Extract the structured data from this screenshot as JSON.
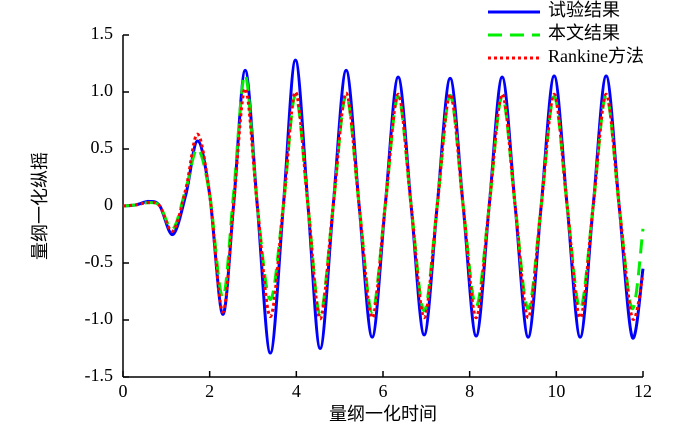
{
  "chart_data": {
    "type": "line",
    "xlabel": "量纲一化时间",
    "ylabel": "量纲一化纵摇",
    "x": [
      0,
      0.3,
      0.6,
      0.85,
      1.15,
      1.45,
      1.72,
      2.0,
      2.3,
      2.55,
      2.82,
      3.1,
      3.4,
      3.7,
      3.98,
      4.27,
      4.55,
      4.85,
      5.15,
      5.45,
      5.75,
      6.05,
      6.35,
      6.65,
      6.95,
      7.25,
      7.55,
      7.85,
      8.15,
      8.45,
      8.75,
      9.05,
      9.35,
      9.65,
      9.95,
      10.25,
      10.55,
      10.85,
      11.15,
      11.45,
      11.75,
      12.0
    ],
    "series": [
      {
        "name": "试验结果",
        "color": "#0000ff",
        "dash": "solid",
        "values": [
          0,
          0.01,
          0.04,
          0,
          -0.25,
          0.1,
          0.57,
          0.1,
          -0.95,
          0,
          1.19,
          0,
          -1.29,
          0,
          1.28,
          0,
          -1.25,
          0,
          1.19,
          0,
          -1.15,
          0,
          1.13,
          0,
          -1.13,
          0,
          1.12,
          0,
          -1.14,
          0,
          1.13,
          0,
          -1.15,
          0,
          1.14,
          0,
          -1.15,
          0,
          1.14,
          0,
          -1.15,
          -0.55
        ]
      },
      {
        "name": "本文结果",
        "color": "#00ee00",
        "dash": "dashed",
        "values": [
          0,
          0.01,
          0.03,
          0,
          -0.2,
          0.15,
          0.5,
          0.1,
          -0.8,
          0.1,
          1.15,
          0,
          -0.82,
          0,
          0.97,
          0,
          -0.95,
          0,
          0.97,
          0,
          -0.93,
          0,
          0.96,
          0,
          -0.92,
          0,
          0.97,
          0,
          -0.88,
          0,
          0.96,
          0,
          -0.9,
          0,
          0.96,
          0,
          -0.9,
          0,
          0.97,
          0,
          -0.9,
          -0.2
        ]
      },
      {
        "name": "Rankine方法",
        "color": "#ff0000",
        "dash": "dotted",
        "values": [
          0,
          0.01,
          0.03,
          0,
          -0.22,
          0.15,
          0.63,
          0.1,
          -0.93,
          0,
          1.03,
          0,
          -0.97,
          0,
          1.0,
          0,
          -0.99,
          0,
          0.99,
          0,
          -0.98,
          0,
          0.98,
          0,
          -0.98,
          0,
          0.98,
          0,
          -0.98,
          0,
          0.98,
          0,
          -0.98,
          0,
          0.98,
          0,
          -0.98,
          0,
          0.98,
          0,
          -0.98,
          -0.6
        ]
      }
    ],
    "xlim": [
      0,
      12
    ],
    "xticks": [
      0,
      2,
      4,
      6,
      8,
      10,
      12
    ],
    "ylim": [
      -1.5,
      1.5
    ],
    "yticks": [
      -1.5,
      {
        "value": -1.0,
        "label": "-1.0"
      },
      -0.5,
      0,
      0.5,
      {
        "value": 1.0,
        "label": "1.0"
      },
      1.5
    ],
    "legend": "upper right"
  }
}
